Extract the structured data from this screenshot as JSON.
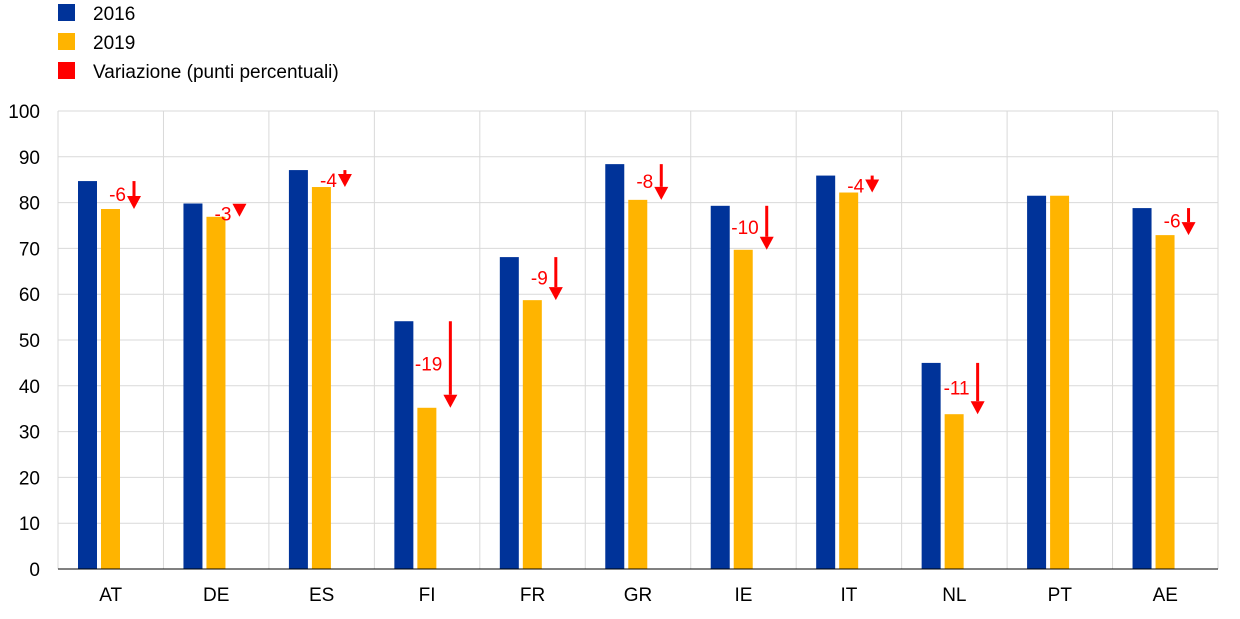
{
  "colors": {
    "series_2016": "#003399",
    "series_2019": "#ffb400",
    "change": "#ff0000",
    "grid": "#d9d9d9",
    "axis": "#000000"
  },
  "chart_data": {
    "type": "bar",
    "title": "",
    "xlabel": "",
    "ylabel": "",
    "ylim": [
      0,
      100
    ],
    "yticks": [
      0,
      10,
      20,
      30,
      40,
      50,
      60,
      70,
      80,
      90,
      100
    ],
    "grid": true,
    "legend_position": "top-left",
    "categories": [
      "AT",
      "DE",
      "ES",
      "FI",
      "FR",
      "GR",
      "IE",
      "IT",
      "NL",
      "PT",
      "AE"
    ],
    "series": [
      {
        "name": "2016",
        "values": [
          84.7,
          79.8,
          87.1,
          54.1,
          68.1,
          88.4,
          79.3,
          85.9,
          45.0,
          81.5,
          78.8
        ]
      },
      {
        "name": "2019",
        "values": [
          78.6,
          76.9,
          83.4,
          35.2,
          58.7,
          80.6,
          69.7,
          82.2,
          33.8,
          81.5,
          72.9
        ]
      }
    ],
    "change": {
      "name": "Variazione (punti percentuali)",
      "labels": [
        "-6",
        "-3",
        "-4",
        "-19",
        "-9",
        "-8",
        "-10",
        "-4",
        "-11",
        "",
        "-6"
      ],
      "values": [
        -6,
        -3,
        -4,
        -19,
        -9,
        -8,
        -10,
        -4,
        -11,
        0,
        -6
      ]
    }
  }
}
